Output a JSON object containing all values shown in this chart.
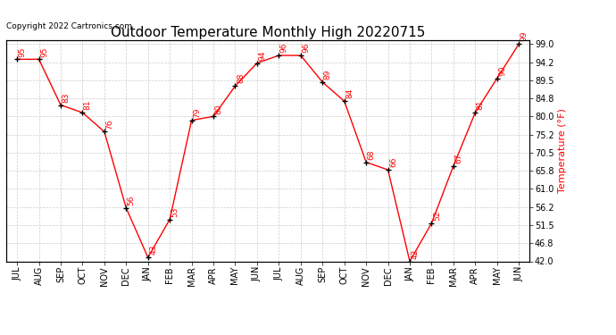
{
  "title": "Outdoor Temperature Monthly High 20220715",
  "copyright": "Copyright 2022 Cartronics.com",
  "ylabel": "Temperature (°F)",
  "months": [
    "JUL",
    "AUG",
    "SEP",
    "OCT",
    "NOV",
    "DEC",
    "JAN",
    "FEB",
    "MAR",
    "APR",
    "MAY",
    "JUN",
    "JUL",
    "AUG",
    "SEP",
    "OCT",
    "NOV",
    "DEC",
    "JAN",
    "FEB",
    "MAR",
    "APR",
    "MAY",
    "JUN"
  ],
  "values": [
    95,
    95,
    83,
    81,
    76,
    56,
    43,
    53,
    79,
    80,
    88,
    94,
    96,
    96,
    89,
    84,
    68,
    66,
    42,
    52,
    67,
    81,
    90,
    99
  ],
  "line_color": "#ff0000",
  "marker_color": "#000000",
  "label_color": "#ff0000",
  "title_color": "#000000",
  "copyright_color": "#000000",
  "ylabel_color": "#ff0000",
  "bg_color": "#ffffff",
  "grid_color": "#cccccc",
  "ytick_labels": [
    "42.0",
    "46.8",
    "51.5",
    "56.2",
    "61.0",
    "65.8",
    "70.5",
    "75.2",
    "80.0",
    "84.8",
    "89.5",
    "94.2",
    "99.0"
  ],
  "ytick_values": [
    42.0,
    46.8,
    51.5,
    56.2,
    61.0,
    65.8,
    70.5,
    75.2,
    80.0,
    84.8,
    89.5,
    94.2,
    99.0
  ],
  "ymin": 42.0,
  "ymax": 100.0,
  "title_fontsize": 11,
  "copyright_fontsize": 6.5,
  "label_fontsize": 6.5,
  "ylabel_fontsize": 8,
  "tick_fontsize": 7
}
